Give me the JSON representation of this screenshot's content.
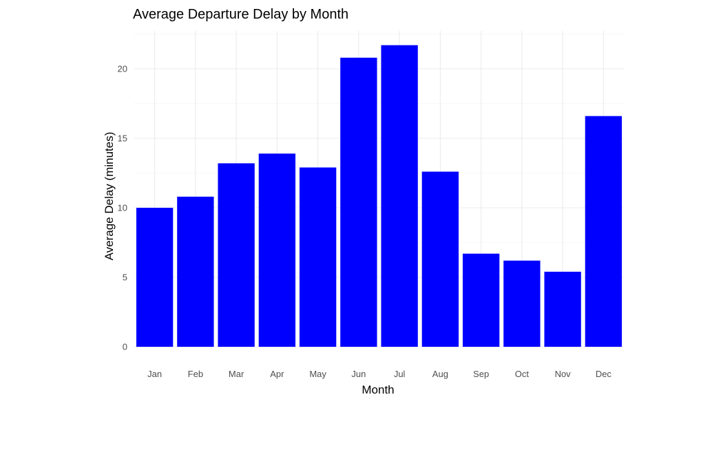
{
  "chart_data": {
    "type": "bar",
    "title": "Average Departure Delay by Month",
    "xlabel": "Month",
    "ylabel": "Average Delay (minutes)",
    "categories": [
      "Jan",
      "Feb",
      "Mar",
      "Apr",
      "May",
      "Jun",
      "Jul",
      "Aug",
      "Sep",
      "Oct",
      "Nov",
      "Dec"
    ],
    "values": [
      10.0,
      10.8,
      13.2,
      13.9,
      12.9,
      20.8,
      21.7,
      12.6,
      6.7,
      6.2,
      5.4,
      16.6
    ],
    "ylim": [
      0,
      22.5
    ],
    "yticks": [
      0,
      5,
      10,
      15,
      20
    ],
    "bar_color": "#0000ff",
    "grid": true,
    "legend": "none"
  }
}
